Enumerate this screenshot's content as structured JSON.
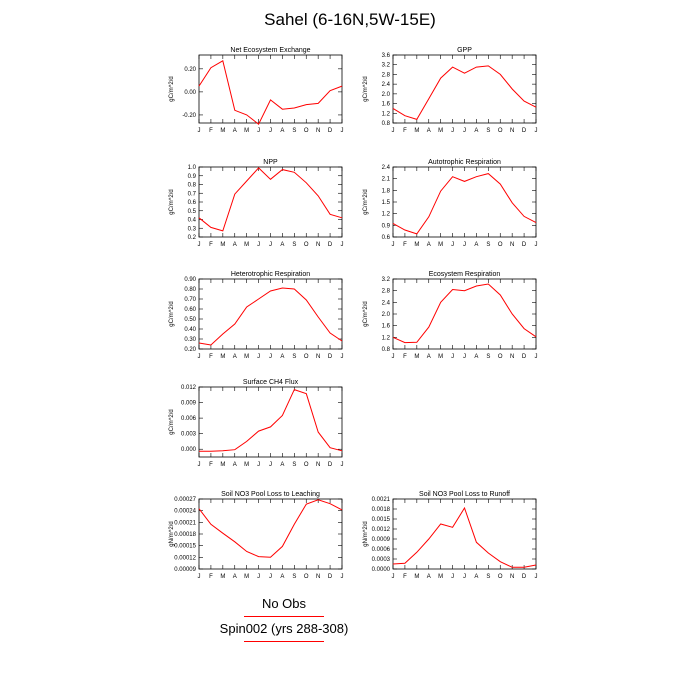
{
  "title": "Sahel (6-16N,5W-15E)",
  "legend": {
    "obs_label": "No Obs",
    "model_label": "Spin002 (yrs 288-308)",
    "model_color": "#ff0000"
  },
  "month_labels": [
    "J",
    "F",
    "M",
    "A",
    "M",
    "J",
    "J",
    "A",
    "S",
    "O",
    "N",
    "D",
    "J"
  ],
  "chart_data": [
    {
      "type": "line",
      "title": "Net Ecosystem Exchange",
      "ylabel": "gC/m^2/d",
      "ylim": [
        -0.27,
        0.32
      ],
      "yticks": [
        -0.2,
        0.0,
        0.2
      ],
      "ytick_labels": [
        "-0.20",
        "0.00",
        "0.20"
      ],
      "series": [
        {
          "values": [
            0.05,
            0.21,
            0.27,
            -0.16,
            -0.2,
            -0.28,
            -0.07,
            -0.15,
            -0.14,
            -0.11,
            -0.1,
            0.01,
            0.05
          ]
        }
      ]
    },
    {
      "type": "line",
      "title": "GPP",
      "ylabel": "gC/m^2/d",
      "ylim": [
        0.8,
        3.6
      ],
      "yticks": [
        0.8,
        1.2,
        1.6,
        2.0,
        2.4,
        2.8,
        3.2,
        3.6
      ],
      "ytick_labels": [
        "0.8",
        "1.2",
        "1.6",
        "2.0",
        "2.4",
        "2.8",
        "3.2",
        "3.6"
      ],
      "series": [
        {
          "values": [
            1.4,
            1.1,
            0.95,
            1.8,
            2.65,
            3.1,
            2.85,
            3.1,
            3.15,
            2.8,
            2.2,
            1.7,
            1.45
          ]
        }
      ]
    },
    {
      "type": "line",
      "title": "NPP",
      "ylabel": "gC/m^2/d",
      "ylim": [
        0.2,
        1.0
      ],
      "yticks": [
        0.2,
        0.3,
        0.4,
        0.5,
        0.6,
        0.7,
        0.8,
        0.9,
        1.0
      ],
      "ytick_labels": [
        "0.2",
        "0.3",
        "0.4",
        "0.5",
        "0.6",
        "0.7",
        "0.8",
        "0.9",
        "1.0"
      ],
      "series": [
        {
          "values": [
            0.42,
            0.31,
            0.27,
            0.69,
            0.84,
            0.99,
            0.86,
            0.97,
            0.94,
            0.82,
            0.67,
            0.46,
            0.42
          ]
        }
      ]
    },
    {
      "type": "line",
      "title": "Autotrophic Respiration",
      "ylabel": "gC/m^2/d",
      "ylim": [
        0.6,
        2.4
      ],
      "yticks": [
        0.6,
        0.9,
        1.2,
        1.5,
        1.8,
        2.1,
        2.4
      ],
      "ytick_labels": [
        "0.6",
        "0.9",
        "1.2",
        "1.5",
        "1.8",
        "2.1",
        "2.4"
      ],
      "series": [
        {
          "values": [
            0.95,
            0.78,
            0.68,
            1.12,
            1.78,
            2.15,
            2.03,
            2.15,
            2.23,
            1.96,
            1.48,
            1.13,
            0.97
          ]
        }
      ]
    },
    {
      "type": "line",
      "title": "Heterotrophic Respiration",
      "ylabel": "gC/m^2/d",
      "ylim": [
        0.2,
        0.9
      ],
      "yticks": [
        0.2,
        0.3,
        0.4,
        0.5,
        0.6,
        0.7,
        0.8,
        0.9
      ],
      "ytick_labels": [
        "0.20",
        "0.30",
        "0.40",
        "0.50",
        "0.60",
        "0.70",
        "0.80",
        "0.90"
      ],
      "series": [
        {
          "values": [
            0.26,
            0.24,
            0.35,
            0.45,
            0.62,
            0.7,
            0.78,
            0.81,
            0.8,
            0.69,
            0.52,
            0.36,
            0.28
          ]
        }
      ]
    },
    {
      "type": "line",
      "title": "Ecosystem Respiration",
      "ylabel": "gC/m^2/d",
      "ylim": [
        0.8,
        3.2
      ],
      "yticks": [
        0.8,
        1.2,
        1.6,
        2.0,
        2.4,
        2.8,
        3.2
      ],
      "ytick_labels": [
        "0.8",
        "1.2",
        "1.6",
        "2.0",
        "2.4",
        "2.8",
        "3.2"
      ],
      "series": [
        {
          "values": [
            1.2,
            1.02,
            1.03,
            1.55,
            2.4,
            2.84,
            2.8,
            2.96,
            3.03,
            2.65,
            2.0,
            1.5,
            1.22
          ]
        }
      ]
    },
    {
      "type": "line",
      "title": "Surface CH4 Flux",
      "ylabel": "gC/m^2/d",
      "ylim": [
        -0.0015,
        0.012
      ],
      "yticks": [
        0.0,
        0.003,
        0.006,
        0.009,
        0.012
      ],
      "ytick_labels": [
        "0.000",
        "0.003",
        "0.006",
        "0.009",
        "0.012"
      ],
      "series": [
        {
          "values": [
            -0.0004,
            -0.0004,
            -0.0003,
            -0.0001,
            0.0015,
            0.0035,
            0.0043,
            0.0065,
            0.0115,
            0.0107,
            0.0033,
            0.0003,
            -0.0003
          ]
        }
      ]
    },
    {
      "type": "line",
      "title": "Soil NO3 Pool Loss to Leaching",
      "ylabel": "gN/m^2/d",
      "ylim": [
        9e-05,
        0.00027
      ],
      "yticks": [
        9e-05,
        0.00012,
        0.00015,
        0.00018,
        0.00021,
        0.00024,
        0.00027
      ],
      "ytick_labels": [
        "0.00009",
        "0.00012",
        "0.00015",
        "0.00018",
        "0.00021",
        "0.00024",
        "0.00027"
      ],
      "series": [
        {
          "values": [
            0.000245,
            0.000205,
            0.000182,
            0.00016,
            0.000135,
            0.000122,
            0.00012,
            0.000148,
            0.000205,
            0.000257,
            0.000268,
            0.000258,
            0.000242
          ]
        }
      ]
    },
    {
      "type": "line",
      "title": "Soil NO3 Pool Loss to Runoff",
      "ylabel": "gN/m^2/d",
      "ylim": [
        0.0,
        0.0021
      ],
      "yticks": [
        0.0,
        0.0003,
        0.0006,
        0.0009,
        0.0012,
        0.0015,
        0.0018,
        0.0021
      ],
      "ytick_labels": [
        "0.0000",
        "0.0003",
        "0.0006",
        "0.0009",
        "0.0012",
        "0.0015",
        "0.0018",
        "0.0021"
      ],
      "series": [
        {
          "values": [
            0.00015,
            0.00017,
            0.0005,
            0.0009,
            0.00135,
            0.00125,
            0.00183,
            0.0008,
            0.00048,
            0.00022,
            5e-05,
            5e-05,
            0.00012
          ]
        }
      ]
    }
  ]
}
